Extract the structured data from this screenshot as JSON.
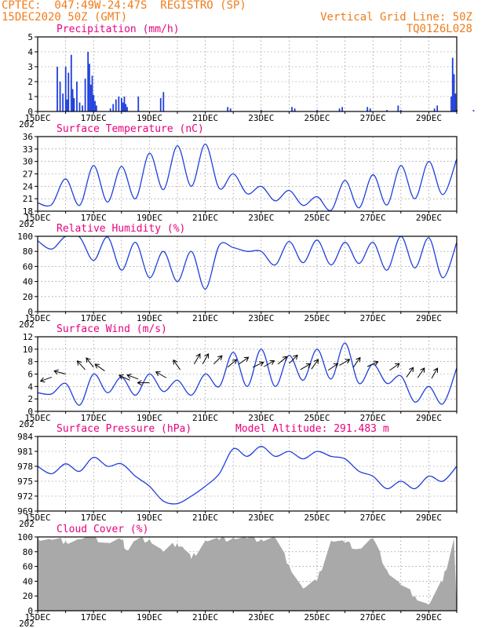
{
  "header": {
    "left1": "CPTEC:  047:49W-24:47S  REGISTRO (SP)",
    "left2": "15DEC2020 50Z (GMT)",
    "right1": "Vertical Grid Line: 50Z",
    "right2": "TQ0126L028"
  },
  "colors": {
    "header": "#ee7d1c",
    "title": "#e8007d",
    "line": "#1f3fdc",
    "cloud": "#a9a9a9",
    "arrow": "#000000"
  },
  "x_labels": [
    "15DEC",
    "17DEC",
    "19DEC",
    "21DEC",
    "23DEC",
    "25DEC",
    "27DEC",
    "29DEC"
  ],
  "x_label_prefix": "202",
  "chart_data": [
    {
      "id": "precip",
      "type": "bar",
      "title": "Precipitation (mm/h)",
      "ylim": [
        0,
        5
      ],
      "yticks": [
        0,
        1,
        2,
        3,
        4,
        5
      ],
      "bars": [
        [
          0.7,
          3.0
        ],
        [
          0.8,
          2.0
        ],
        [
          0.9,
          1.2
        ],
        [
          1.0,
          3.0
        ],
        [
          1.05,
          0.8
        ],
        [
          1.1,
          2.6
        ],
        [
          1.2,
          3.8
        ],
        [
          1.25,
          1.5
        ],
        [
          1.3,
          0.9
        ],
        [
          1.4,
          2.0
        ],
        [
          1.5,
          0.6
        ],
        [
          1.6,
          0.4
        ],
        [
          1.7,
          2.2
        ],
        [
          1.8,
          4.0
        ],
        [
          1.85,
          3.2
        ],
        [
          1.9,
          1.8
        ],
        [
          1.95,
          2.4
        ],
        [
          2.0,
          1.1
        ],
        [
          2.05,
          0.7
        ],
        [
          2.1,
          0.4
        ],
        [
          2.6,
          0.2
        ],
        [
          2.7,
          0.5
        ],
        [
          2.8,
          0.8
        ],
        [
          2.9,
          1.0
        ],
        [
          3.0,
          0.9
        ],
        [
          3.05,
          0.6
        ],
        [
          3.1,
          1.0
        ],
        [
          3.15,
          0.5
        ],
        [
          3.2,
          0.3
        ],
        [
          3.6,
          1.0
        ],
        [
          4.4,
          0.9
        ],
        [
          4.5,
          1.3
        ],
        [
          6.8,
          0.3
        ],
        [
          6.9,
          0.2
        ],
        [
          8.0,
          0.1
        ],
        [
          9.1,
          0.3
        ],
        [
          9.2,
          0.2
        ],
        [
          10.0,
          0.1
        ],
        [
          10.8,
          0.2
        ],
        [
          10.9,
          0.3
        ],
        [
          11.8,
          0.3
        ],
        [
          11.9,
          0.2
        ],
        [
          12.5,
          0.1
        ],
        [
          12.9,
          0.4
        ],
        [
          13.0,
          0.1
        ],
        [
          14.2,
          0.2
        ],
        [
          14.3,
          0.4
        ],
        [
          15.0,
          0.1
        ],
        [
          15.6,
          0.1
        ],
        [
          16.2,
          0.1
        ],
        [
          16.7,
          0.2
        ],
        [
          14.85,
          3.6
        ],
        [
          14.9,
          2.5
        ],
        [
          14.95,
          1.2
        ],
        [
          14.8,
          1.0
        ]
      ]
    },
    {
      "id": "temp",
      "type": "line",
      "title": "Surface Temperature (nC)",
      "ylim": [
        18,
        36
      ],
      "yticks": [
        18,
        21,
        24,
        27,
        30,
        33,
        36
      ],
      "x": [
        0,
        0.5,
        1,
        1.5,
        2,
        2.5,
        3,
        3.5,
        4,
        4.5,
        5,
        5.5,
        6,
        6.5,
        7,
        7.5,
        8,
        8.5,
        9,
        9.5,
        10,
        10.5,
        11,
        11.5,
        12,
        12.5,
        13,
        13.5,
        14,
        14.5,
        15
      ],
      "values": [
        20,
        19.6,
        25.8,
        19.4,
        29,
        20.2,
        28.8,
        21,
        32,
        23.2,
        33.8,
        24,
        34.2,
        23.5,
        27,
        22.2,
        24,
        20.5,
        23,
        19.4,
        21.5,
        18.2,
        25.4,
        18.8,
        26.8,
        19.5,
        29,
        21,
        30,
        22,
        30.6
      ]
    },
    {
      "id": "rh",
      "type": "line",
      "title": "Relative Humidity (%)",
      "ylim": [
        0,
        100
      ],
      "yticks": [
        0,
        20,
        40,
        60,
        80,
        100
      ],
      "x": [
        0,
        0.5,
        1,
        1.5,
        2,
        2.5,
        3,
        3.5,
        4,
        4.5,
        5,
        5.5,
        6,
        6.5,
        7,
        7.5,
        8,
        8.5,
        9,
        9.5,
        10,
        10.5,
        11,
        11.5,
        12,
        12.5,
        13,
        13.5,
        14,
        14.5,
        15
      ],
      "values": [
        94,
        83,
        100,
        99,
        68,
        99,
        55,
        92,
        45,
        80,
        40,
        80,
        30,
        88,
        85,
        80,
        80,
        62,
        93,
        65,
        95,
        62,
        92,
        64,
        92,
        55,
        100,
        58,
        98,
        45,
        92
      ]
    },
    {
      "id": "wind",
      "type": "line",
      "title": "Surface Wind (m/s)",
      "ylim": [
        0,
        12
      ],
      "yticks": [
        0,
        2,
        4,
        6,
        8,
        10,
        12
      ],
      "x": [
        0,
        0.5,
        1,
        1.5,
        2,
        2.5,
        3,
        3.5,
        4,
        4.5,
        5,
        5.5,
        6,
        6.5,
        7,
        7.5,
        8,
        8.5,
        9,
        9.5,
        10,
        10.5,
        11,
        11.5,
        12,
        12.5,
        13,
        13.5,
        14,
        14.5,
        15
      ],
      "values": [
        3,
        2.8,
        4.5,
        1,
        6,
        3,
        5.5,
        2.6,
        6,
        3.2,
        5,
        2.6,
        6,
        4,
        9.5,
        4,
        10,
        4,
        9,
        5,
        10,
        5.2,
        11,
        4.5,
        7.6,
        4.5,
        5.7,
        1.5,
        4,
        1.2,
        7
      ],
      "arrows": [
        [
          0.5,
          5.5,
          160
        ],
        [
          1.0,
          6.0,
          195
        ],
        [
          1.7,
          6.7,
          228
        ],
        [
          2.0,
          7.1,
          232
        ],
        [
          2.4,
          6.5,
          215
        ],
        [
          3.3,
          5.0,
          205
        ],
        [
          3.6,
          5.2,
          200
        ],
        [
          4.0,
          4.6,
          180
        ],
        [
          4.6,
          5.4,
          210
        ],
        [
          5.1,
          6.7,
          235
        ],
        [
          5.6,
          7.6,
          300
        ],
        [
          5.9,
          7.6,
          300
        ],
        [
          6.3,
          7.6,
          315
        ],
        [
          6.8,
          7.1,
          320
        ],
        [
          7.2,
          7.6,
          325
        ],
        [
          7.7,
          7.1,
          335
        ],
        [
          8.1,
          7.2,
          330
        ],
        [
          8.6,
          7.6,
          320
        ],
        [
          9.0,
          7.7,
          315
        ],
        [
          9.4,
          6.7,
          330
        ],
        [
          9.8,
          6.8,
          305
        ],
        [
          10.4,
          6.6,
          325
        ],
        [
          10.8,
          7.4,
          330
        ],
        [
          11.3,
          7.1,
          305
        ],
        [
          11.8,
          7.2,
          335
        ],
        [
          12.6,
          6.6,
          325
        ],
        [
          13.2,
          5.5,
          305
        ],
        [
          13.6,
          5.4,
          305
        ],
        [
          14.1,
          5.3,
          300
        ]
      ]
    },
    {
      "id": "press",
      "type": "line",
      "title": "Surface Pressure (hPa)",
      "subtitle": "Model Altitude: 291.483 m",
      "ylim": [
        969,
        984
      ],
      "yticks": [
        969,
        972,
        975,
        978,
        981,
        984
      ],
      "x": [
        0,
        0.5,
        1,
        1.5,
        2,
        2.5,
        3,
        3.5,
        4,
        4.5,
        5,
        5.5,
        6,
        6.5,
        7,
        7.5,
        8,
        8.5,
        9,
        9.5,
        10,
        10.5,
        11,
        11.5,
        12,
        12.5,
        13,
        13.5,
        14,
        14.5,
        15
      ],
      "values": [
        978,
        976.5,
        978.5,
        977,
        979.8,
        978,
        978.5,
        976,
        974,
        971,
        970.5,
        972,
        974,
        976.5,
        981.5,
        980,
        982,
        980,
        981,
        979.5,
        981,
        980,
        979.5,
        977,
        976,
        973.5,
        975,
        973.5,
        976,
        975,
        978
      ]
    },
    {
      "id": "cloud",
      "type": "area",
      "title": "Cloud Cover (%)",
      "ylim": [
        0,
        100
      ],
      "yticks": [
        0,
        20,
        40,
        60,
        80,
        100
      ],
      "x": [
        0,
        0.5,
        1,
        1.5,
        2,
        2.5,
        3,
        3.2,
        3.5,
        4,
        4.5,
        5,
        5.2,
        5.5,
        6,
        6.5,
        7,
        7.5,
        8,
        8.5,
        9,
        9.5,
        10,
        10.5,
        11,
        11.5,
        12,
        12.5,
        13,
        13.5,
        14,
        14.5,
        14.9,
        15
      ],
      "values": [
        98,
        96,
        94,
        97,
        99,
        92,
        96,
        82,
        95,
        97,
        80,
        92,
        86,
        70,
        95,
        96,
        99,
        98,
        97,
        99,
        62,
        30,
        40,
        95,
        92,
        84,
        98,
        55,
        35,
        20,
        8,
        40,
        98,
        3
      ]
    }
  ]
}
